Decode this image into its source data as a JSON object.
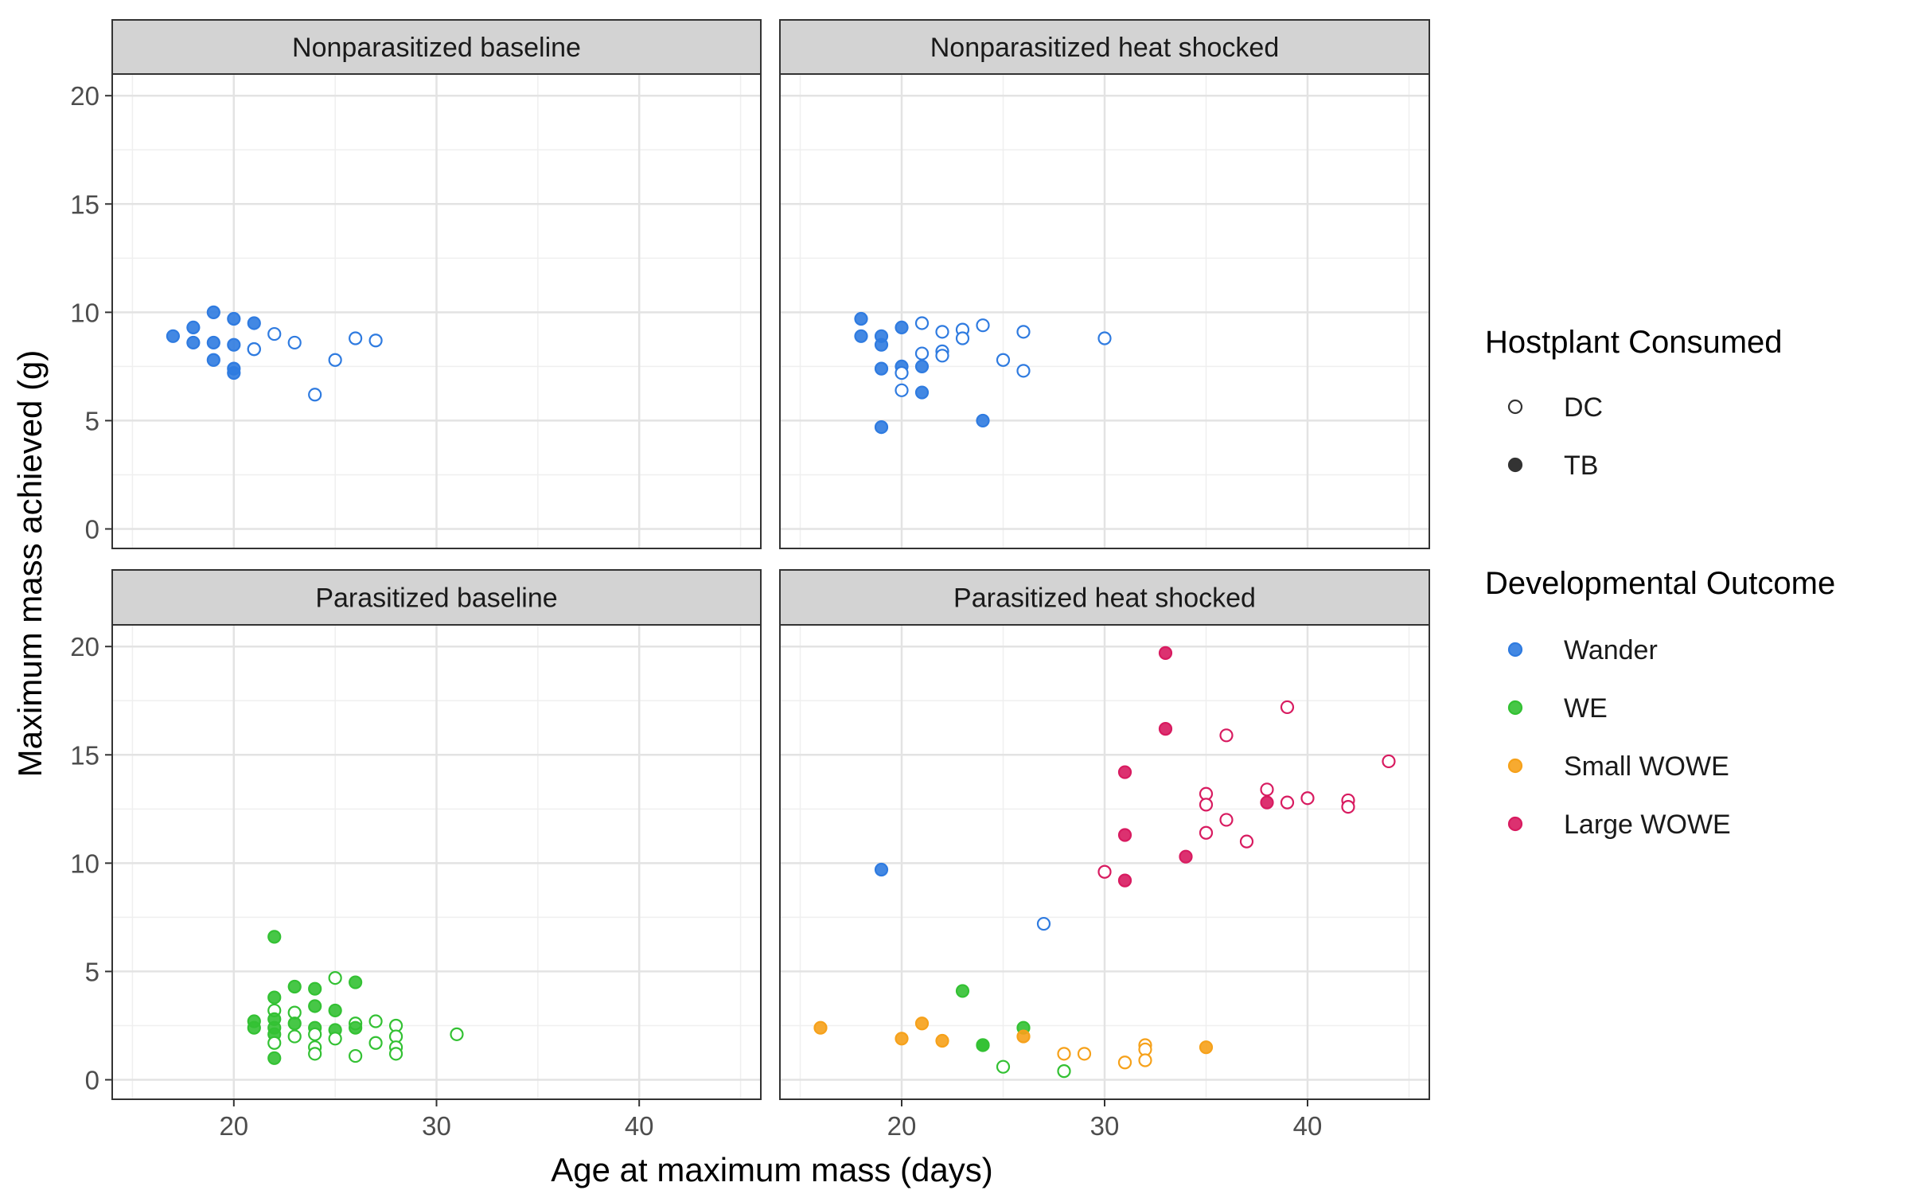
{
  "chart_data": {
    "type": "scatter",
    "xlabel": "Age at maximum mass (days)",
    "ylabel": "Maximum mass achieved (g)",
    "xlim": [
      14,
      46
    ],
    "ylim": [
      -0.9,
      21
    ],
    "x_ticks": [
      20,
      30,
      40
    ],
    "y_ticks": [
      0,
      5,
      10,
      15,
      20
    ],
    "grid": true,
    "facets": [
      "Nonparasitized baseline",
      "Nonparasitized heat shocked",
      "Parasitized baseline",
      "Parasitized heat shocked"
    ],
    "legend": {
      "position": "right",
      "hostplant": {
        "title": "Hostplant Consumed",
        "entries": [
          {
            "label": "DC",
            "key": "DC"
          },
          {
            "label": "TB",
            "key": "TB"
          }
        ]
      },
      "outcome": {
        "title": "Developmental Outcome",
        "entries": [
          {
            "label": "Wander",
            "key": "Wander"
          },
          {
            "label": "WE",
            "key": "WE"
          },
          {
            "label": "Small WOWE",
            "key": "SmallWOWE"
          },
          {
            "label": "Large WOWE",
            "key": "LargeWOWE"
          }
        ]
      }
    },
    "colors": {
      "Wander": "#2f7be0",
      "WE": "#33c133",
      "SmallWOWE": "#f6a11a",
      "LargeWOWE": "#d81b60",
      "strip_fill": "#d3d3d3",
      "grid_major": "#e3e3e3",
      "grid_minor": "#efefef",
      "panel_border": "#333333"
    },
    "points": [
      [
        {
          "x": 17,
          "y": 8.9,
          "o": "Wander",
          "h": "TB"
        },
        {
          "x": 18,
          "y": 9.3,
          "o": "Wander",
          "h": "TB"
        },
        {
          "x": 18,
          "y": 8.6,
          "o": "Wander",
          "h": "TB"
        },
        {
          "x": 19,
          "y": 10.0,
          "o": "Wander",
          "h": "TB"
        },
        {
          "x": 19,
          "y": 8.6,
          "o": "Wander",
          "h": "TB"
        },
        {
          "x": 19,
          "y": 7.8,
          "o": "Wander",
          "h": "TB"
        },
        {
          "x": 20,
          "y": 9.7,
          "o": "Wander",
          "h": "TB"
        },
        {
          "x": 20,
          "y": 8.5,
          "o": "Wander",
          "h": "TB"
        },
        {
          "x": 20,
          "y": 7.4,
          "o": "Wander",
          "h": "TB"
        },
        {
          "x": 20,
          "y": 7.2,
          "o": "Wander",
          "h": "TB"
        },
        {
          "x": 21,
          "y": 9.5,
          "o": "Wander",
          "h": "TB"
        },
        {
          "x": 21,
          "y": 8.3,
          "o": "Wander",
          "h": "TB"
        },
        {
          "x": 21,
          "y": 8.3,
          "o": "Wander",
          "h": "DC"
        },
        {
          "x": 22,
          "y": 9.0,
          "o": "Wander",
          "h": "DC"
        },
        {
          "x": 23,
          "y": 8.6,
          "o": "Wander",
          "h": "DC"
        },
        {
          "x": 24,
          "y": 6.2,
          "o": "Wander",
          "h": "DC"
        },
        {
          "x": 25,
          "y": 7.8,
          "o": "Wander",
          "h": "DC"
        },
        {
          "x": 26,
          "y": 8.8,
          "o": "Wander",
          "h": "DC"
        },
        {
          "x": 27,
          "y": 8.7,
          "o": "Wander",
          "h": "DC"
        }
      ],
      [
        {
          "x": 18,
          "y": 9.7,
          "o": "Wander",
          "h": "TB"
        },
        {
          "x": 18,
          "y": 8.9,
          "o": "Wander",
          "h": "TB"
        },
        {
          "x": 19,
          "y": 8.9,
          "o": "Wander",
          "h": "TB"
        },
        {
          "x": 19,
          "y": 8.5,
          "o": "Wander",
          "h": "TB"
        },
        {
          "x": 19,
          "y": 7.4,
          "o": "Wander",
          "h": "TB"
        },
        {
          "x": 19,
          "y": 4.7,
          "o": "Wander",
          "h": "TB"
        },
        {
          "x": 20,
          "y": 9.3,
          "o": "Wander",
          "h": "TB"
        },
        {
          "x": 20,
          "y": 7.5,
          "o": "Wander",
          "h": "TB"
        },
        {
          "x": 20,
          "y": 7.2,
          "o": "Wander",
          "h": "DC"
        },
        {
          "x": 20,
          "y": 6.4,
          "o": "Wander",
          "h": "DC"
        },
        {
          "x": 21,
          "y": 9.5,
          "o": "Wander",
          "h": "DC"
        },
        {
          "x": 21,
          "y": 8.1,
          "o": "Wander",
          "h": "DC"
        },
        {
          "x": 21,
          "y": 7.5,
          "o": "Wander",
          "h": "TB"
        },
        {
          "x": 21,
          "y": 6.3,
          "o": "Wander",
          "h": "TB"
        },
        {
          "x": 22,
          "y": 9.1,
          "o": "Wander",
          "h": "DC"
        },
        {
          "x": 22,
          "y": 8.2,
          "o": "Wander",
          "h": "DC"
        },
        {
          "x": 22,
          "y": 8.0,
          "o": "Wander",
          "h": "DC"
        },
        {
          "x": 23,
          "y": 9.2,
          "o": "Wander",
          "h": "DC"
        },
        {
          "x": 23,
          "y": 8.8,
          "o": "Wander",
          "h": "DC"
        },
        {
          "x": 24,
          "y": 9.4,
          "o": "Wander",
          "h": "DC"
        },
        {
          "x": 24,
          "y": 5.0,
          "o": "Wander",
          "h": "TB"
        },
        {
          "x": 25,
          "y": 7.8,
          "o": "Wander",
          "h": "DC"
        },
        {
          "x": 26,
          "y": 9.1,
          "o": "Wander",
          "h": "DC"
        },
        {
          "x": 26,
          "y": 7.3,
          "o": "Wander",
          "h": "DC"
        },
        {
          "x": 30,
          "y": 8.8,
          "o": "Wander",
          "h": "DC"
        }
      ],
      [
        {
          "x": 21,
          "y": 2.7,
          "o": "WE",
          "h": "TB"
        },
        {
          "x": 21,
          "y": 2.4,
          "o": "WE",
          "h": "TB"
        },
        {
          "x": 22,
          "y": 6.6,
          "o": "WE",
          "h": "TB"
        },
        {
          "x": 22,
          "y": 3.8,
          "o": "WE",
          "h": "TB"
        },
        {
          "x": 22,
          "y": 3.2,
          "o": "WE",
          "h": "DC"
        },
        {
          "x": 22,
          "y": 2.8,
          "o": "WE",
          "h": "TB"
        },
        {
          "x": 22,
          "y": 2.4,
          "o": "WE",
          "h": "TB"
        },
        {
          "x": 22,
          "y": 2.1,
          "o": "WE",
          "h": "TB"
        },
        {
          "x": 22,
          "y": 1.7,
          "o": "WE",
          "h": "DC"
        },
        {
          "x": 22,
          "y": 1.0,
          "o": "WE",
          "h": "TB"
        },
        {
          "x": 23,
          "y": 4.3,
          "o": "WE",
          "h": "TB"
        },
        {
          "x": 23,
          "y": 3.1,
          "o": "WE",
          "h": "DC"
        },
        {
          "x": 23,
          "y": 2.6,
          "o": "WE",
          "h": "TB"
        },
        {
          "x": 23,
          "y": 2.0,
          "o": "WE",
          "h": "DC"
        },
        {
          "x": 24,
          "y": 4.2,
          "o": "WE",
          "h": "TB"
        },
        {
          "x": 24,
          "y": 3.4,
          "o": "WE",
          "h": "TB"
        },
        {
          "x": 24,
          "y": 2.4,
          "o": "WE",
          "h": "TB"
        },
        {
          "x": 24,
          "y": 2.1,
          "o": "WE",
          "h": "DC"
        },
        {
          "x": 24,
          "y": 1.5,
          "o": "WE",
          "h": "DC"
        },
        {
          "x": 24,
          "y": 1.2,
          "o": "WE",
          "h": "DC"
        },
        {
          "x": 25,
          "y": 4.7,
          "o": "WE",
          "h": "DC"
        },
        {
          "x": 25,
          "y": 3.2,
          "o": "WE",
          "h": "TB"
        },
        {
          "x": 25,
          "y": 2.3,
          "o": "WE",
          "h": "TB"
        },
        {
          "x": 25,
          "y": 1.9,
          "o": "WE",
          "h": "DC"
        },
        {
          "x": 26,
          "y": 4.5,
          "o": "WE",
          "h": "TB"
        },
        {
          "x": 26,
          "y": 2.6,
          "o": "WE",
          "h": "DC"
        },
        {
          "x": 26,
          "y": 2.4,
          "o": "WE",
          "h": "TB"
        },
        {
          "x": 26,
          "y": 1.1,
          "o": "WE",
          "h": "DC"
        },
        {
          "x": 27,
          "y": 2.7,
          "o": "WE",
          "h": "DC"
        },
        {
          "x": 27,
          "y": 1.7,
          "o": "WE",
          "h": "DC"
        },
        {
          "x": 28,
          "y": 2.5,
          "o": "WE",
          "h": "DC"
        },
        {
          "x": 28,
          "y": 2.0,
          "o": "WE",
          "h": "DC"
        },
        {
          "x": 28,
          "y": 1.5,
          "o": "WE",
          "h": "DC"
        },
        {
          "x": 28,
          "y": 1.2,
          "o": "WE",
          "h": "DC"
        },
        {
          "x": 31,
          "y": 2.1,
          "o": "WE",
          "h": "DC"
        }
      ],
      [
        {
          "x": 19,
          "y": 9.7,
          "o": "Wander",
          "h": "TB"
        },
        {
          "x": 27,
          "y": 7.2,
          "o": "Wander",
          "h": "DC"
        },
        {
          "x": 23,
          "y": 4.1,
          "o": "WE",
          "h": "TB"
        },
        {
          "x": 24,
          "y": 1.6,
          "o": "WE",
          "h": "TB"
        },
        {
          "x": 24,
          "y": 1.6,
          "o": "WE",
          "h": "TB"
        },
        {
          "x": 25,
          "y": 0.6,
          "o": "WE",
          "h": "DC"
        },
        {
          "x": 26,
          "y": 2.4,
          "o": "WE",
          "h": "TB"
        },
        {
          "x": 28,
          "y": 0.4,
          "o": "WE",
          "h": "DC"
        },
        {
          "x": 16,
          "y": 2.4,
          "o": "SmallWOWE",
          "h": "TB"
        },
        {
          "x": 20,
          "y": 1.9,
          "o": "SmallWOWE",
          "h": "TB"
        },
        {
          "x": 21,
          "y": 2.6,
          "o": "SmallWOWE",
          "h": "TB"
        },
        {
          "x": 22,
          "y": 1.8,
          "o": "SmallWOWE",
          "h": "TB"
        },
        {
          "x": 26,
          "y": 2.0,
          "o": "SmallWOWE",
          "h": "TB"
        },
        {
          "x": 28,
          "y": 1.2,
          "o": "SmallWOWE",
          "h": "DC"
        },
        {
          "x": 29,
          "y": 1.2,
          "o": "SmallWOWE",
          "h": "DC"
        },
        {
          "x": 31,
          "y": 0.8,
          "o": "SmallWOWE",
          "h": "DC"
        },
        {
          "x": 32,
          "y": 1.6,
          "o": "SmallWOWE",
          "h": "DC"
        },
        {
          "x": 32,
          "y": 1.4,
          "o": "SmallWOWE",
          "h": "DC"
        },
        {
          "x": 32,
          "y": 0.9,
          "o": "SmallWOWE",
          "h": "DC"
        },
        {
          "x": 35,
          "y": 1.5,
          "o": "SmallWOWE",
          "h": "TB"
        },
        {
          "x": 30,
          "y": 9.6,
          "o": "LargeWOWE",
          "h": "DC"
        },
        {
          "x": 31,
          "y": 14.2,
          "o": "LargeWOWE",
          "h": "TB"
        },
        {
          "x": 31,
          "y": 11.3,
          "o": "LargeWOWE",
          "h": "TB"
        },
        {
          "x": 31,
          "y": 9.2,
          "o": "LargeWOWE",
          "h": "TB"
        },
        {
          "x": 33,
          "y": 19.7,
          "o": "LargeWOWE",
          "h": "TB"
        },
        {
          "x": 33,
          "y": 16.2,
          "o": "LargeWOWE",
          "h": "TB"
        },
        {
          "x": 34,
          "y": 10.3,
          "o": "LargeWOWE",
          "h": "TB"
        },
        {
          "x": 35,
          "y": 13.2,
          "o": "LargeWOWE",
          "h": "DC"
        },
        {
          "x": 35,
          "y": 12.7,
          "o": "LargeWOWE",
          "h": "DC"
        },
        {
          "x": 35,
          "y": 11.4,
          "o": "LargeWOWE",
          "h": "DC"
        },
        {
          "x": 36,
          "y": 15.9,
          "o": "LargeWOWE",
          "h": "DC"
        },
        {
          "x": 36,
          "y": 12.0,
          "o": "LargeWOWE",
          "h": "DC"
        },
        {
          "x": 37,
          "y": 11.0,
          "o": "LargeWOWE",
          "h": "DC"
        },
        {
          "x": 38,
          "y": 13.4,
          "o": "LargeWOWE",
          "h": "DC"
        },
        {
          "x": 38,
          "y": 12.8,
          "o": "LargeWOWE",
          "h": "TB"
        },
        {
          "x": 39,
          "y": 17.2,
          "o": "LargeWOWE",
          "h": "DC"
        },
        {
          "x": 39,
          "y": 12.8,
          "o": "LargeWOWE",
          "h": "DC"
        },
        {
          "x": 40,
          "y": 13.0,
          "o": "LargeWOWE",
          "h": "DC"
        },
        {
          "x": 42,
          "y": 12.9,
          "o": "LargeWOWE",
          "h": "DC"
        },
        {
          "x": 42,
          "y": 12.6,
          "o": "LargeWOWE",
          "h": "DC"
        },
        {
          "x": 44,
          "y": 14.7,
          "o": "LargeWOWE",
          "h": "DC"
        }
      ]
    ]
  }
}
